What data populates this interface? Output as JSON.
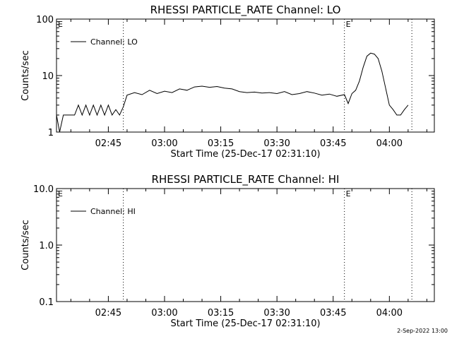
{
  "chart_data": [
    {
      "type": "line",
      "title": "RHESSI PARTICLE_RATE Channel: LO",
      "xlabel": "Start Time (25-Dec-17 02:31:10)",
      "ylabel": "Counts/sec",
      "yscale": "log",
      "ylim": [
        1,
        100
      ],
      "xlim": [
        "02:31:10",
        "04:12:00"
      ],
      "xticks": [
        "02:45",
        "03:00",
        "03:15",
        "03:30",
        "03:45",
        "04:00"
      ],
      "yticks": [
        "1",
        "10",
        "100"
      ],
      "legend": {
        "label": "Channel: LO",
        "position": "top-left"
      },
      "markers": [
        {
          "label": "E",
          "time": "02:31:10",
          "line": false
        },
        {
          "label": "",
          "time": "02:49:00",
          "line": true
        },
        {
          "label": "E",
          "time": "03:48:00",
          "line": true
        },
        {
          "label": "",
          "time": "04:06:00",
          "line": true
        }
      ],
      "series": [
        {
          "name": "Channel: LO",
          "x": [
            "02:31:10",
            "02:32:00",
            "02:33:00",
            "02:34:00",
            "02:35:00",
            "02:36:00",
            "02:37:00",
            "02:38:00",
            "02:39:00",
            "02:40:00",
            "02:41:00",
            "02:42:00",
            "02:43:00",
            "02:44:00",
            "02:45:00",
            "02:46:00",
            "02:47:00",
            "02:48:00",
            "02:49:00",
            "02:50:00",
            "02:52:00",
            "02:54:00",
            "02:56:00",
            "02:58:00",
            "03:00:00",
            "03:02:00",
            "03:04:00",
            "03:06:00",
            "03:08:00",
            "03:10:00",
            "03:12:00",
            "03:14:00",
            "03:16:00",
            "03:18:00",
            "03:20:00",
            "03:22:00",
            "03:24:00",
            "03:26:00",
            "03:28:00",
            "03:30:00",
            "03:32:00",
            "03:34:00",
            "03:36:00",
            "03:38:00",
            "03:40:00",
            "03:42:00",
            "03:44:00",
            "03:46:00",
            "03:48:00",
            "03:49:00",
            "03:50:00",
            "03:51:00",
            "03:52:00",
            "03:53:00",
            "03:54:00",
            "03:55:00",
            "03:56:00",
            "03:57:00",
            "03:58:00",
            "03:59:00",
            "04:00:00",
            "04:01:00",
            "04:02:00",
            "04:03:00",
            "04:04:00",
            "04:05:00"
          ],
          "y": [
            2,
            1,
            2,
            2,
            2,
            2,
            3,
            2,
            3,
            2,
            3,
            2,
            3,
            2,
            3,
            2,
            2.5,
            2,
            2.8,
            4.5,
            5,
            4.6,
            5.5,
            4.8,
            5.3,
            5,
            5.8,
            5.5,
            6.3,
            6.5,
            6.2,
            6.4,
            6,
            5.8,
            5.2,
            5,
            5.1,
            4.9,
            5,
            4.8,
            5.2,
            4.6,
            4.8,
            5.2,
            4.9,
            4.5,
            4.7,
            4.3,
            4.6,
            3.2,
            4.8,
            5.5,
            8,
            14,
            22,
            25,
            24,
            20,
            12,
            6,
            3,
            2.5,
            2,
            2,
            2.5,
            3
          ]
        }
      ]
    },
    {
      "type": "line",
      "title": "RHESSI PARTICLE_RATE Channel: HI",
      "xlabel": "Start Time (25-Dec-17 02:31:10)",
      "ylabel": "Counts/sec",
      "yscale": "log",
      "ylim": [
        0.1,
        10
      ],
      "xlim": [
        "02:31:10",
        "04:12:00"
      ],
      "xticks": [
        "02:45",
        "03:00",
        "03:15",
        "03:30",
        "03:45",
        "04:00"
      ],
      "yticks": [
        "0.1",
        "1.0",
        "10.0"
      ],
      "legend": {
        "label": "Channel: HI",
        "position": "top-left"
      },
      "markers": [
        {
          "label": "E",
          "time": "02:31:10",
          "line": false
        },
        {
          "label": "",
          "time": "02:49:00",
          "line": true
        },
        {
          "label": "E",
          "time": "03:48:00",
          "line": true
        },
        {
          "label": "",
          "time": "04:06:00",
          "line": true
        }
      ],
      "series": [
        {
          "name": "Channel: HI",
          "x": [],
          "y": []
        }
      ]
    }
  ],
  "footer": {
    "timestamp": "2-Sep-2022 13:00"
  }
}
